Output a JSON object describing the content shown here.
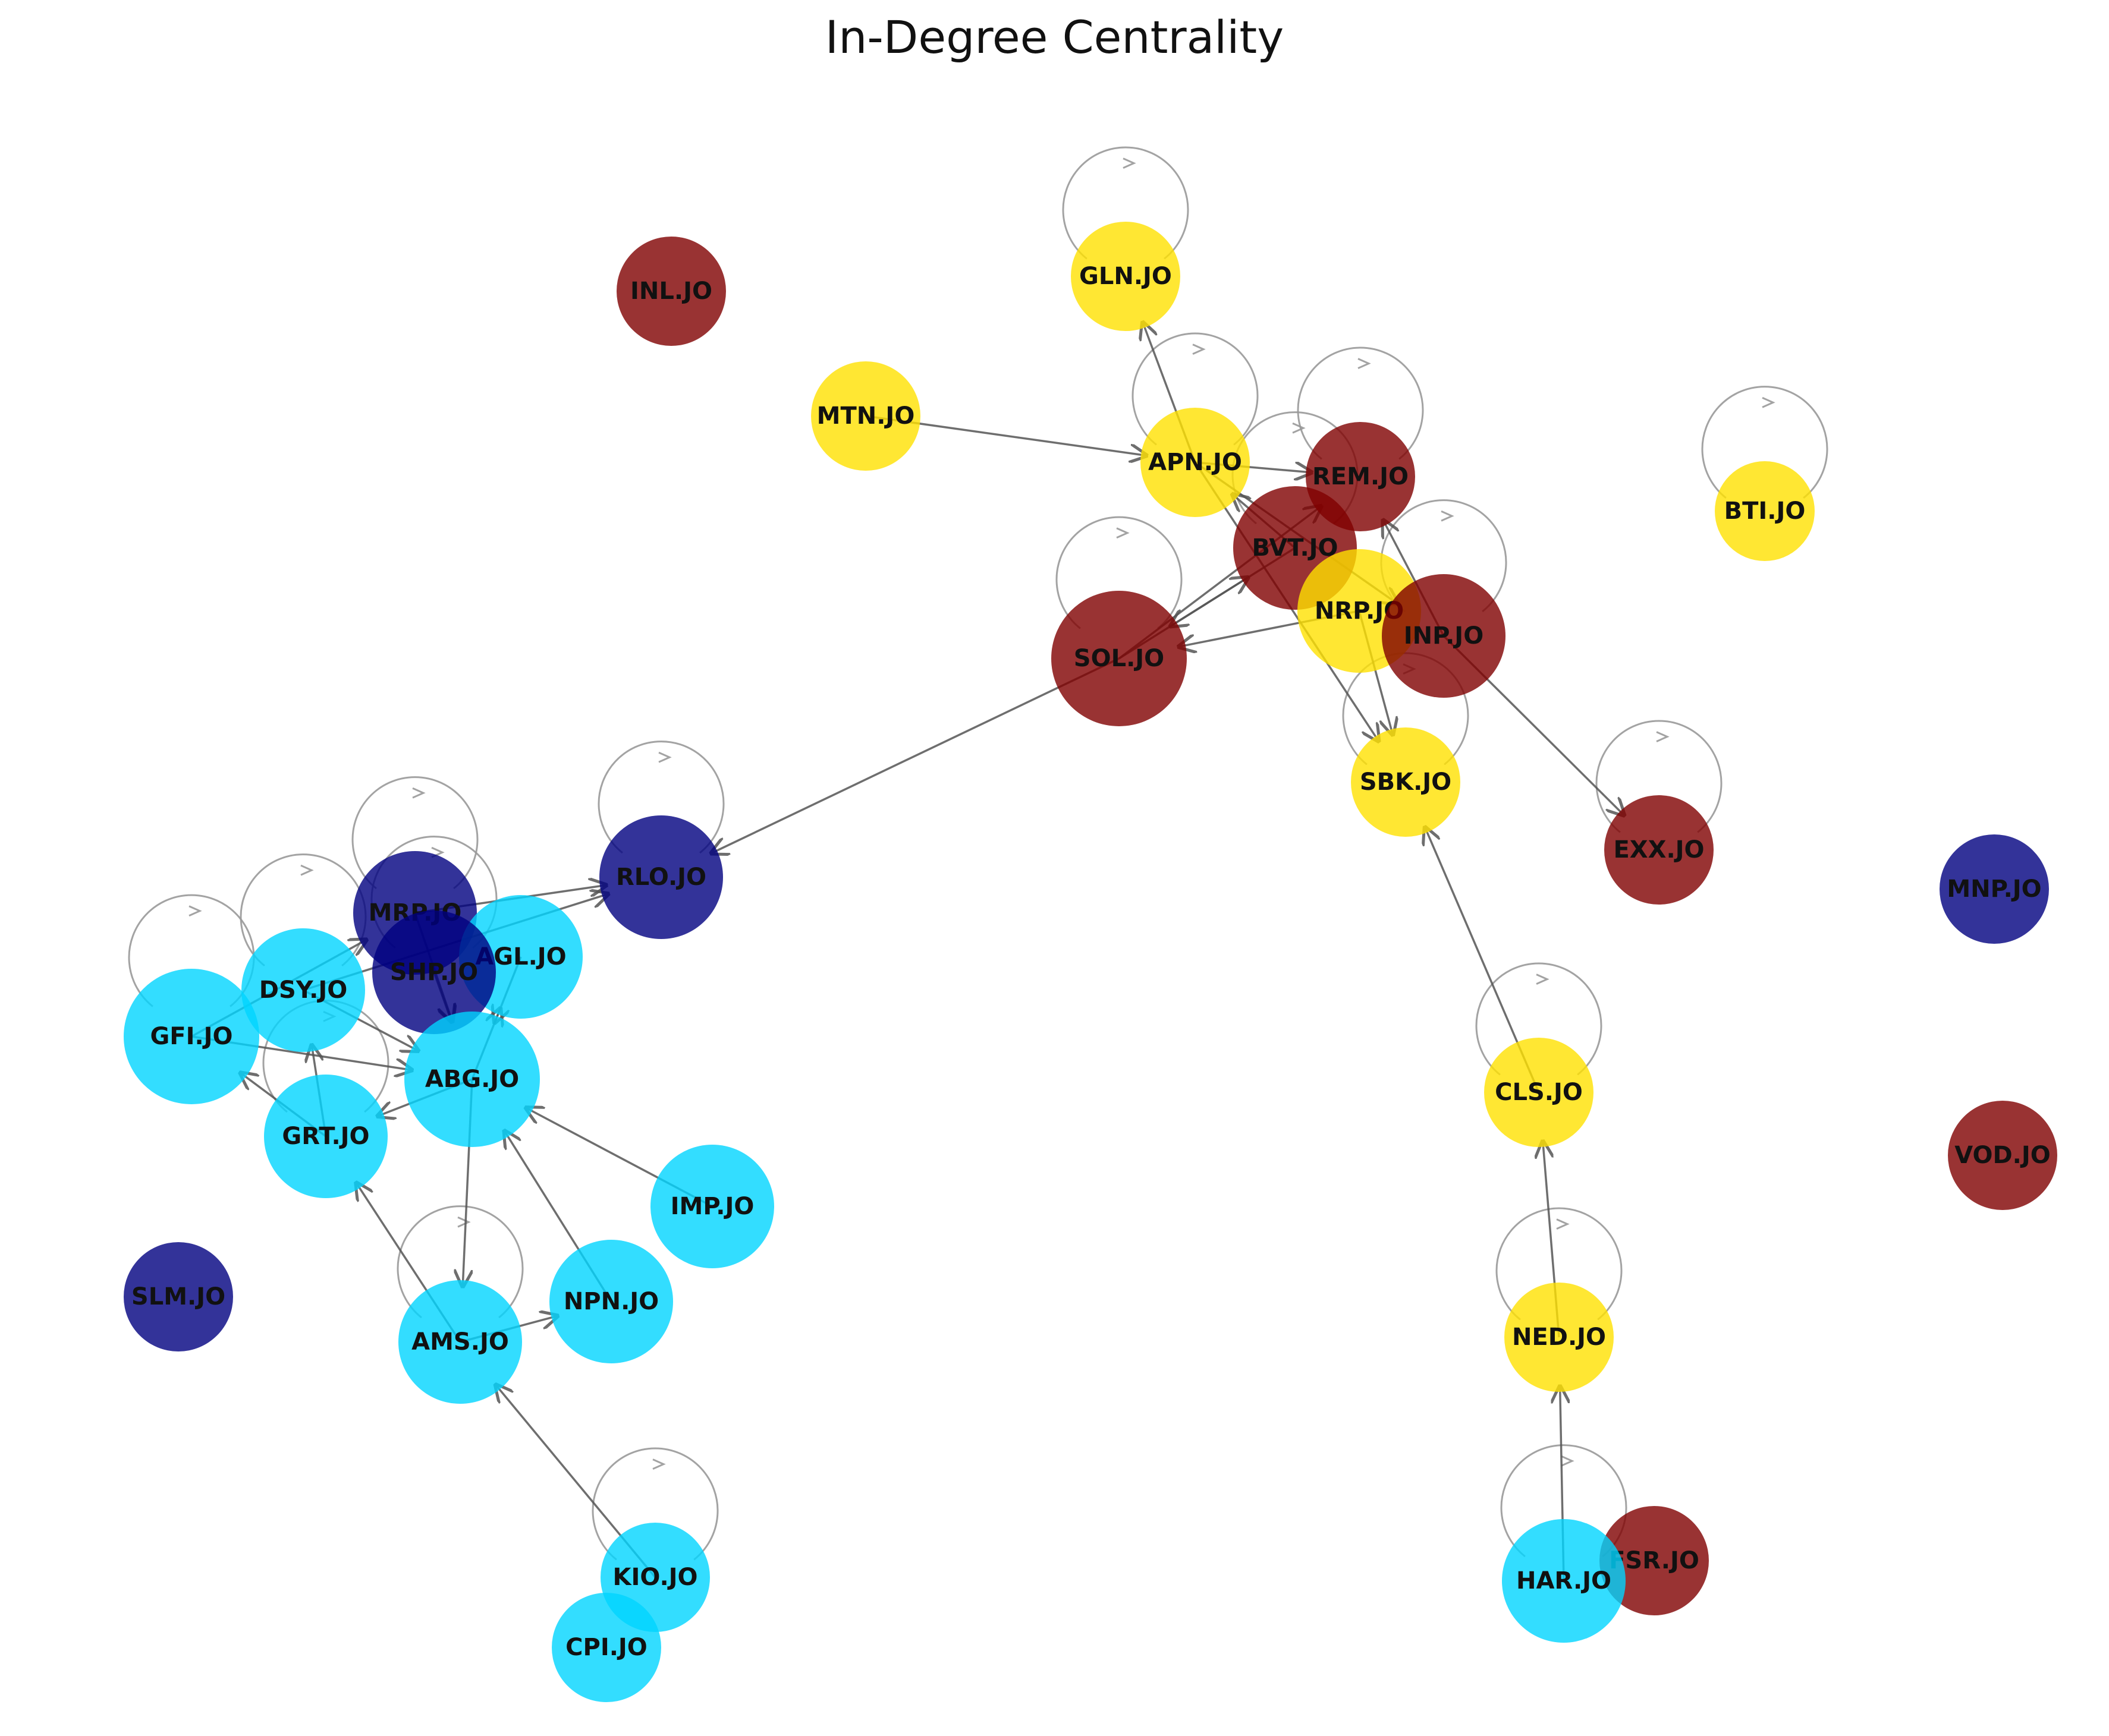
{
  "title": "In-Degree Centrality",
  "colors": {
    "cyan": "#00d4ff",
    "yellow": "#ffe100",
    "darkred": "#7f0000",
    "navy": "#00007f",
    "edge": "#555555",
    "loop": "#999999"
  },
  "nodes": [
    {
      "id": "INL.JO",
      "color": "darkred",
      "size": "m"
    },
    {
      "id": "GLN.JO",
      "color": "yellow",
      "size": "m"
    },
    {
      "id": "MTN.JO",
      "color": "yellow",
      "size": "m"
    },
    {
      "id": "APN.JO",
      "color": "yellow",
      "size": "m"
    },
    {
      "id": "REM.JO",
      "color": "darkred",
      "size": "m"
    },
    {
      "id": "BVT.JO",
      "color": "darkred",
      "size": "l"
    },
    {
      "id": "NRP.JO",
      "color": "yellow",
      "size": "l"
    },
    {
      "id": "INP.JO",
      "color": "darkred",
      "size": "l"
    },
    {
      "id": "SOL.JO",
      "color": "darkred",
      "size": "xl"
    },
    {
      "id": "BTI.JO",
      "color": "yellow",
      "size": "s"
    },
    {
      "id": "SBK.JO",
      "color": "yellow",
      "size": "m"
    },
    {
      "id": "EXX.JO",
      "color": "darkred",
      "size": "m"
    },
    {
      "id": "RLO.JO",
      "color": "navy",
      "size": "l"
    },
    {
      "id": "MRP.JO",
      "color": "navy",
      "size": "l"
    },
    {
      "id": "AGL.JO",
      "color": "cyan",
      "size": "l"
    },
    {
      "id": "SHP.JO",
      "color": "navy",
      "size": "l"
    },
    {
      "id": "DSY.JO",
      "color": "cyan",
      "size": "l"
    },
    {
      "id": "GFI.JO",
      "color": "cyan",
      "size": "xl"
    },
    {
      "id": "ABG.JO",
      "color": "cyan",
      "size": "xl"
    },
    {
      "id": "GRT.JO",
      "color": "cyan",
      "size": "l"
    },
    {
      "id": "MNP.JO",
      "color": "navy",
      "size": "m"
    },
    {
      "id": "CLS.JO",
      "color": "yellow",
      "size": "m"
    },
    {
      "id": "VOD.JO",
      "color": "darkred",
      "size": "m"
    },
    {
      "id": "IMP.JO",
      "color": "cyan",
      "size": "l"
    },
    {
      "id": "SLM.JO",
      "color": "navy",
      "size": "m"
    },
    {
      "id": "NPN.JO",
      "color": "cyan",
      "size": "l"
    },
    {
      "id": "AMS.JO",
      "color": "cyan",
      "size": "l"
    },
    {
      "id": "NED.JO",
      "color": "yellow",
      "size": "m"
    },
    {
      "id": "KIO.JO",
      "color": "cyan",
      "size": "m"
    },
    {
      "id": "FSR.JO",
      "color": "darkred",
      "size": "m"
    },
    {
      "id": "HAR.JO",
      "color": "cyan",
      "size": "l"
    },
    {
      "id": "CPI.JO",
      "color": "cyan",
      "size": "m"
    }
  ],
  "self_loops": [
    "GLN.JO",
    "APN.JO",
    "REM.JO",
    "BVT.JO",
    "INP.JO",
    "SOL.JO",
    "BTI.JO",
    "SBK.JO",
    "EXX.JO",
    "RLO.JO",
    "MRP.JO",
    "SHP.JO",
    "DSY.JO",
    "GFI.JO",
    "GRT.JO",
    "CLS.JO",
    "AMS.JO",
    "NED.JO",
    "KIO.JO",
    "HAR.JO"
  ],
  "edges": [
    {
      "from": "MTN.JO",
      "to": "APN.JO"
    },
    {
      "from": "APN.JO",
      "to": "GLN.JO"
    },
    {
      "from": "APN.JO",
      "to": "REM.JO"
    },
    {
      "from": "APN.JO",
      "to": "INP.JO"
    },
    {
      "from": "APN.JO",
      "to": "SBK.JO"
    },
    {
      "from": "BVT.JO",
      "to": "APN.JO"
    },
    {
      "from": "SOL.JO",
      "to": "REM.JO"
    },
    {
      "from": "SOL.JO",
      "to": "BVT.JO"
    },
    {
      "from": "BVT.JO",
      "to": "SOL.JO"
    },
    {
      "from": "INP.JO",
      "to": "REM.JO"
    },
    {
      "from": "INP.JO",
      "to": "EXX.JO"
    },
    {
      "from": "NRP.JO",
      "to": "SOL.JO"
    },
    {
      "from": "NRP.JO",
      "to": "SBK.JO"
    },
    {
      "from": "SOL.JO",
      "to": "RLO.JO"
    },
    {
      "from": "CLS.JO",
      "to": "SBK.JO"
    },
    {
      "from": "NED.JO",
      "to": "CLS.JO"
    },
    {
      "from": "HAR.JO",
      "to": "NED.JO"
    },
    {
      "from": "MRP.JO",
      "to": "RLO.JO"
    },
    {
      "from": "DSY.JO",
      "to": "RLO.JO"
    },
    {
      "from": "GFI.JO",
      "to": "MRP.JO"
    },
    {
      "from": "MRP.JO",
      "to": "ABG.JO"
    },
    {
      "from": "SHP.JO",
      "to": "ABG.JO"
    },
    {
      "from": "AGL.JO",
      "to": "ABG.JO"
    },
    {
      "from": "ABG.JO",
      "to": "AGL.JO"
    },
    {
      "from": "DSY.JO",
      "to": "ABG.JO"
    },
    {
      "from": "GFI.JO",
      "to": "ABG.JO"
    },
    {
      "from": "GRT.JO",
      "to": "GFI.JO"
    },
    {
      "from": "GRT.JO",
      "to": "DSY.JO"
    },
    {
      "from": "ABG.JO",
      "to": "GRT.JO"
    },
    {
      "from": "IMP.JO",
      "to": "ABG.JO"
    },
    {
      "from": "NPN.JO",
      "to": "ABG.JO"
    },
    {
      "from": "ABG.JO",
      "to": "AMS.JO"
    },
    {
      "from": "AMS.JO",
      "to": "GRT.JO"
    },
    {
      "from": "AMS.JO",
      "to": "NPN.JO"
    },
    {
      "from": "KIO.JO",
      "to": "AMS.JO"
    }
  ]
}
